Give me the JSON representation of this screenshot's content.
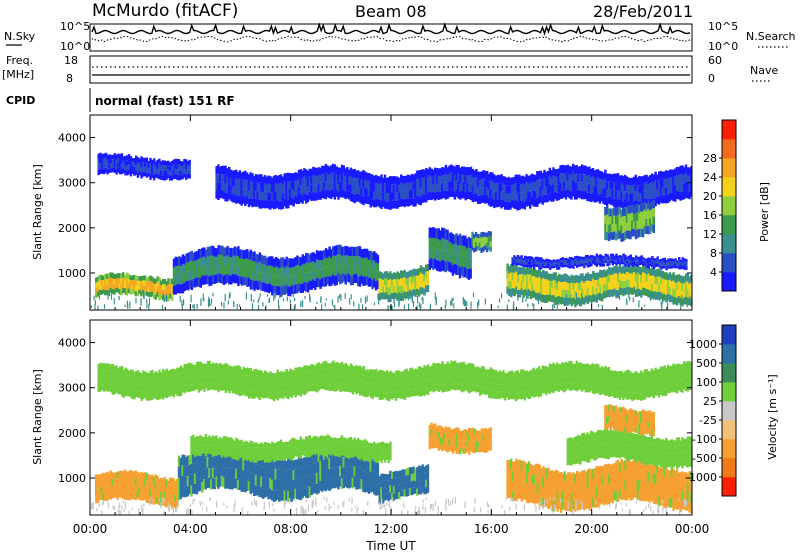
{
  "header": {
    "station": "McMurdo (fitACF)",
    "beam": "Beam 08",
    "date": "28/Feb/2011"
  },
  "status_panels": {
    "nsky": {
      "label": "N.Sky",
      "axis_top": "10^5",
      "axis_bottom": "10^0",
      "right_label": "N.Search",
      "right_axis_top": "10^5",
      "right_axis_bottom": "10^0"
    },
    "freq": {
      "label_line1": "Freq.",
      "label_line2": "[MHz]",
      "axis_top": "18",
      "axis_bottom": "8",
      "right_label": "Nave",
      "right_axis_top": "60",
      "right_axis_bottom": "0"
    },
    "cpid": {
      "label": "CPID",
      "value": "normal (fast) 151 RF"
    }
  },
  "chart_data": [
    {
      "type": "heatmap",
      "panel": "power",
      "ylabel": "Slant Range [km]",
      "ylim": [
        180,
        4500
      ],
      "yticks": [
        "1000",
        "2000",
        "3000",
        "4000"
      ],
      "colorbar_label": "Power [dB]",
      "colorbar_ticks": [
        "4",
        "8",
        "12",
        "16",
        "20",
        "24",
        "28"
      ],
      "colorbar_colors": [
        "#1a1aff",
        "#2b4fc4",
        "#3a8f8f",
        "#3c9a4a",
        "#8fcf3e",
        "#f2d21a",
        "#f5a623",
        "#f26b1d",
        "#ff2000"
      ],
      "echo_bands": [
        {
          "t": [
            0.2,
            3.3
          ],
          "r": [
            420,
            950
          ],
          "level": 28
        },
        {
          "t": [
            3.3,
            11.5
          ],
          "r": [
            600,
            1500
          ],
          "level": 16
        },
        {
          "t": [
            11.5,
            13.5
          ],
          "r": [
            450,
            1150
          ],
          "level": 24
        },
        {
          "t": [
            13.5,
            15.2
          ],
          "r": [
            900,
            1900
          ],
          "level": 16
        },
        {
          "t": [
            15.2,
            16.0
          ],
          "r": [
            1500,
            2000
          ],
          "level": 20
        },
        {
          "t": [
            16.6,
            24.0
          ],
          "r": [
            350,
            1100
          ],
          "level": 24
        },
        {
          "t": [
            16.8,
            23.8
          ],
          "r": [
            1100,
            1400
          ],
          "level": 8
        },
        {
          "t": [
            0.3,
            4.0
          ],
          "r": [
            3100,
            3600
          ],
          "level": 8
        },
        {
          "t": [
            5.0,
            24.0
          ],
          "r": [
            2500,
            3300
          ],
          "level": 8
        },
        {
          "t": [
            20.5,
            22.5
          ],
          "r": [
            1800,
            2600
          ],
          "level": 20
        }
      ]
    },
    {
      "type": "heatmap",
      "panel": "velocity",
      "ylabel": "Slant Range [km]",
      "ylim": [
        180,
        4500
      ],
      "yticks": [
        "1000",
        "2000",
        "3000",
        "4000"
      ],
      "xlabel": "Time UT",
      "xticks": [
        "00:00",
        "04:00",
        "08:00",
        "12:00",
        "16:00",
        "20:00",
        "00:00"
      ],
      "xlim_hours": [
        0,
        24
      ],
      "colorbar_label": "Velocity [m s⁻¹]",
      "colorbar_ticks": [
        "1000",
        "500",
        "100",
        "25",
        "-25",
        "-100",
        "-500",
        "-1000"
      ],
      "colorbar_colors": [
        "#1f3fbf",
        "#2e6fa8",
        "#3b8c5a",
        "#6fcf3a",
        "#c8c8c8",
        "#f0c07a",
        "#f5a030",
        "#f07a1a",
        "#ff2000"
      ],
      "echo_bands": [
        {
          "t": [
            0.2,
            3.5
          ],
          "r": [
            400,
            1100
          ],
          "level": -500
        },
        {
          "t": [
            3.5,
            11.5
          ],
          "r": [
            600,
            1600
          ],
          "level": 500
        },
        {
          "t": [
            4.0,
            12.0
          ],
          "r": [
            1400,
            1900
          ],
          "level": 25
        },
        {
          "t": [
            11.5,
            13.5
          ],
          "r": [
            500,
            1200
          ],
          "level": 500
        },
        {
          "t": [
            13.5,
            16.0
          ],
          "r": [
            1600,
            2200
          ],
          "level": -500
        },
        {
          "t": [
            16.6,
            24.0
          ],
          "r": [
            350,
            1300
          ],
          "level": -500
        },
        {
          "t": [
            19.0,
            24.0
          ],
          "r": [
            1300,
            2000
          ],
          "level": 25
        },
        {
          "t": [
            20.5,
            22.5
          ],
          "r": [
            2000,
            2600
          ],
          "level": -500
        },
        {
          "t": [
            0.3,
            24.0
          ],
          "r": [
            2800,
            3500
          ],
          "level": 25
        }
      ]
    }
  ]
}
